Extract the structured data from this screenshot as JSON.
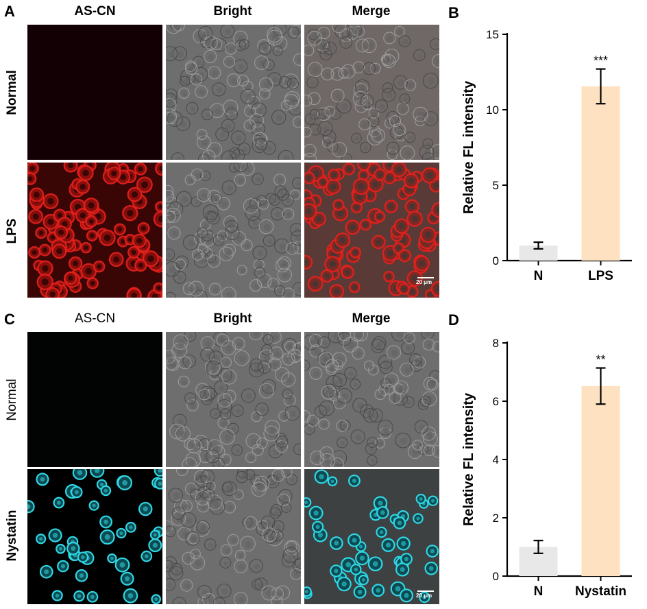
{
  "panel_A": {
    "letter": "A",
    "columns": [
      "AS-CN",
      "Bright",
      "Merge"
    ],
    "rows": [
      "Normal",
      "LPS"
    ],
    "scale_bar": "20 μm"
  },
  "panel_B": {
    "letter": "B"
  },
  "panel_C": {
    "letter": "C",
    "columns": [
      "AS-CN",
      "Bright",
      "Merge"
    ],
    "rows": [
      "Normal",
      "Nystatin"
    ],
    "scale_bar": "20 μm"
  },
  "panel_D": {
    "letter": "D"
  },
  "colors": {
    "red_fluor": "#e4201c",
    "cyan_fluor": "#2fd7e6",
    "bar_control": "#e8e8e8",
    "bar_treated": "#fde1c0",
    "bright_field": "#707070"
  },
  "chart_data": [
    {
      "type": "bar",
      "panel": "B",
      "categories": [
        "N",
        "LPS"
      ],
      "values": [
        1.0,
        11.55
      ],
      "errors": [
        0.22,
        1.15
      ],
      "significance": [
        "",
        "***"
      ],
      "ylabel": "Relative FL intensity",
      "ylim": [
        0,
        15
      ],
      "yticks": [
        0,
        5,
        10,
        15
      ],
      "bar_colors": [
        "#e8e8e8",
        "#fde1c0"
      ]
    },
    {
      "type": "bar",
      "panel": "D",
      "categories": [
        "N",
        "Nystatin"
      ],
      "values": [
        1.0,
        6.52
      ],
      "errors": [
        0.22,
        0.62
      ],
      "significance": [
        "",
        "**"
      ],
      "ylabel": "Relative FL intensity",
      "ylim": [
        0,
        8
      ],
      "yticks": [
        0,
        2,
        4,
        6,
        8
      ],
      "bar_colors": [
        "#e8e8e8",
        "#fde1c0"
      ]
    }
  ]
}
